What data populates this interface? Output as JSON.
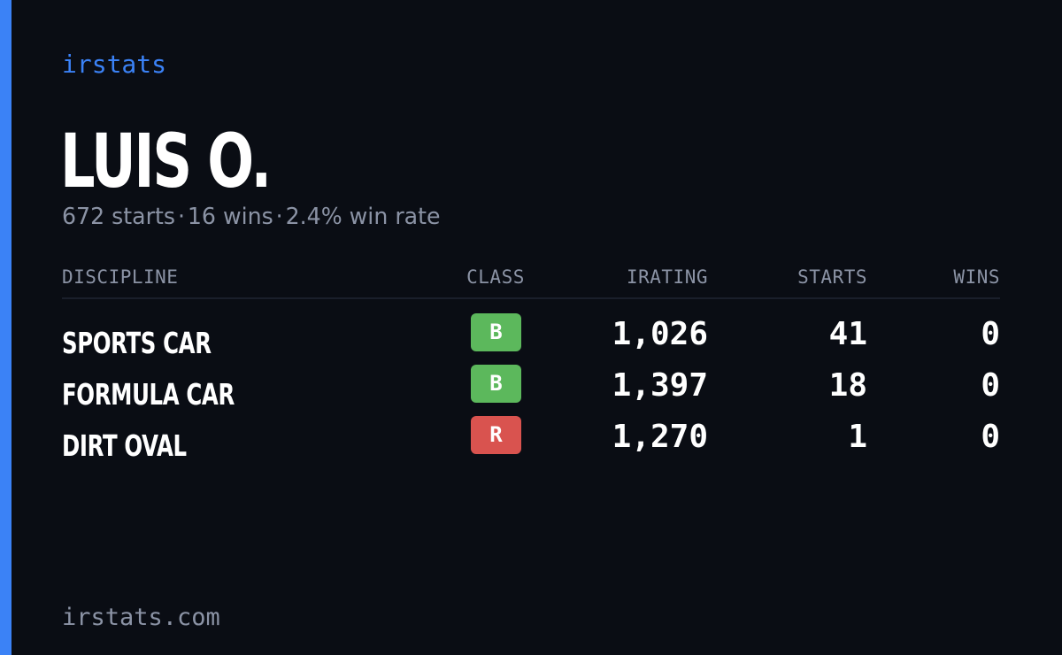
{
  "brand": "irstats",
  "player": {
    "name": "LUIS O.",
    "summary": {
      "starts": "672 starts",
      "wins": "16 wins",
      "win_rate": "2.4% win rate",
      "separator": "·"
    }
  },
  "table": {
    "headers": {
      "discipline": "DISCIPLINE",
      "class": "CLASS",
      "irating": "IRATING",
      "starts": "STARTS",
      "wins": "WINS"
    },
    "rows": [
      {
        "discipline": "SPORTS CAR",
        "class": "B",
        "class_color": "#5cb85c",
        "irating": "1,026",
        "starts": "41",
        "wins": "0"
      },
      {
        "discipline": "FORMULA CAR",
        "class": "B",
        "class_color": "#5cb85c",
        "irating": "1,397",
        "starts": "18",
        "wins": "0"
      },
      {
        "discipline": "DIRT OVAL",
        "class": "R",
        "class_color": "#d9534f",
        "irating": "1,270",
        "starts": "1",
        "wins": "0"
      }
    ]
  },
  "footer": {
    "url": "irstats.com"
  },
  "colors": {
    "accent": "#3b82f6",
    "background": "#0a0d14",
    "muted_text": "#8b93a5"
  }
}
